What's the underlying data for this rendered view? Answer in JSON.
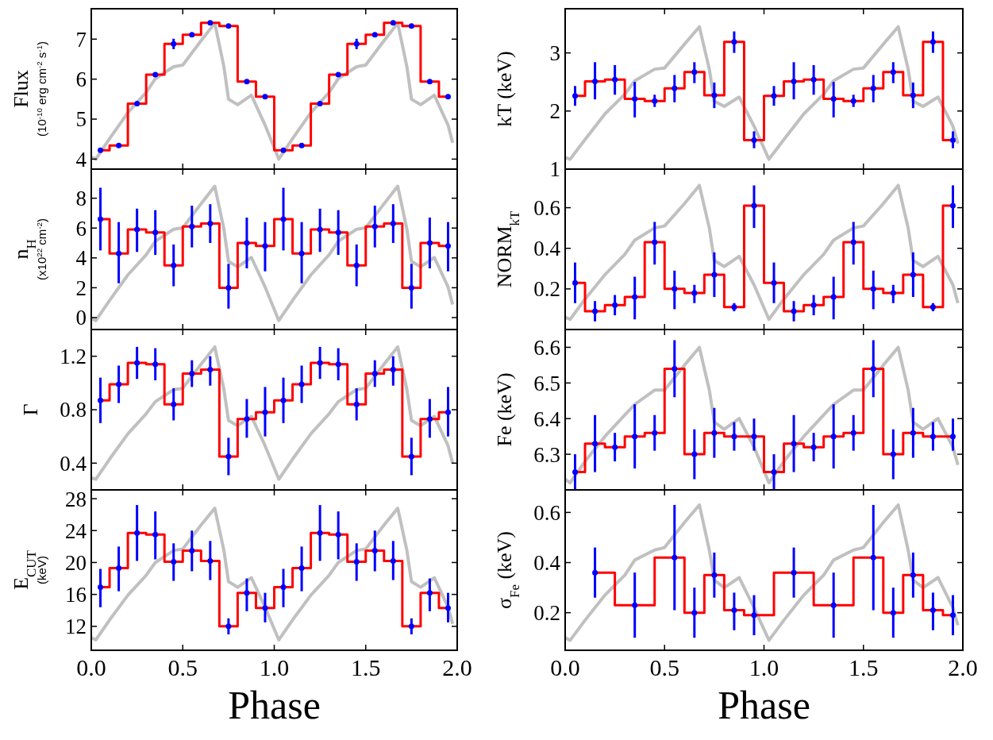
{
  "chart_data": [
    {
      "type": "line",
      "ylabel": "Flux\n(10$^{-10}$ erg cm$^{-2}$ s$^{-1}$)",
      "xlim": [
        0,
        2
      ],
      "xticks": [
        0,
        0.5,
        1,
        1.5,
        2
      ],
      "ylim": [
        3.75,
        7.76
      ],
      "yticks": [
        4,
        5,
        6,
        7
      ],
      "tick_labels": "y",
      "series": [
        {
          "color": "#c0c0c0",
          "x": [
            0,
            0.025,
            0.1,
            0.2,
            0.3,
            0.35,
            0.45,
            0.5,
            0.6,
            0.675,
            0.725,
            0.75,
            0.8,
            0.875,
            0.95,
            1.025,
            1.1,
            1.2,
            1.3,
            1.35,
            1.45,
            1.5,
            1.6,
            1.675,
            1.725,
            1.75,
            1.8,
            1.875,
            1.95,
            1.975
          ],
          "values": [
            4.05,
            4.0,
            4.51,
            5.16,
            5.67,
            6.01,
            6.31,
            6.35,
            6.96,
            7.4,
            6.31,
            5.5,
            5.36,
            5.6,
            4.85,
            4.0,
            4.51,
            5.16,
            5.67,
            6.01,
            6.31,
            6.35,
            6.96,
            7.4,
            6.31,
            5.5,
            5.36,
            5.6,
            4.85,
            4.41
          ]
        },
        {
          "type": "step",
          "color": "#ff0000",
          "x": [
            0.05,
            0.1,
            0.2,
            0.3,
            0.4,
            0.5,
            0.6,
            0.7,
            0.8,
            0.9,
            1.0,
            1.1,
            1.2,
            1.3,
            1.4,
            1.5,
            1.6,
            1.7,
            1.8,
            1.9,
            1.95
          ],
          "values": [
            4.22,
            4.34,
            5.39,
            6.11,
            6.88,
            7.11,
            7.41,
            7.33,
            5.94,
            5.56,
            4.22,
            4.34,
            5.39,
            6.11,
            6.88,
            7.11,
            7.41,
            7.33,
            5.94,
            5.56,
            5.56
          ]
        },
        {
          "type": "scatter",
          "color": "#0000ff",
          "marker": "circle",
          "x": [
            0.05,
            0.15,
            0.25,
            0.35,
            0.45,
            0.55,
            0.65,
            0.75,
            0.85,
            0.95,
            1.05,
            1.15,
            1.25,
            1.35,
            1.45,
            1.55,
            1.65,
            1.75,
            1.85,
            1.95
          ],
          "values": [
            4.22,
            4.34,
            5.39,
            6.11,
            6.88,
            7.11,
            7.41,
            7.33,
            5.94,
            5.56,
            4.22,
            4.34,
            5.39,
            6.11,
            6.88,
            7.11,
            7.41,
            7.33,
            5.94,
            5.56
          ],
          "errors": [
            0.05,
            0.05,
            0.05,
            0.05,
            0.13,
            0.05,
            0.05,
            0.05,
            0.05,
            0.05,
            0.05,
            0.05,
            0.05,
            0.05,
            0.13,
            0.05,
            0.05,
            0.05,
            0.05,
            0.05
          ]
        }
      ]
    },
    {
      "type": "line",
      "ylabel": "kT (keV)",
      "xlim": [
        0,
        2
      ],
      "xticks": [
        0,
        0.5,
        1,
        1.5,
        2
      ],
      "ylim": [
        1,
        3.76
      ],
      "yticks": [
        1,
        2,
        3
      ],
      "tick_labels": "y",
      "series": [
        {
          "color": "#c0c0c0",
          "x": [
            0,
            0.025,
            0.1,
            0.2,
            0.3,
            0.35,
            0.45,
            0.5,
            0.6,
            0.675,
            0.725,
            0.75,
            0.8,
            0.875,
            0.95,
            1.025,
            1.1,
            1.2,
            1.3,
            1.35,
            1.45,
            1.5,
            1.6,
            1.675,
            1.725,
            1.75,
            1.8,
            1.875,
            1.95,
            1.975
          ],
          "values": [
            1.2,
            1.17,
            1.51,
            1.95,
            2.29,
            2.52,
            2.72,
            2.74,
            3.15,
            3.45,
            2.72,
            2.17,
            2.08,
            2.24,
            1.74,
            1.17,
            1.51,
            1.95,
            2.29,
            2.52,
            2.72,
            2.74,
            3.15,
            3.45,
            2.72,
            2.17,
            2.08,
            2.24,
            1.74,
            1.44
          ]
        },
        {
          "type": "step",
          "color": "#ff0000",
          "x": [
            0.05,
            0.1,
            0.2,
            0.3,
            0.4,
            0.5,
            0.6,
            0.7,
            0.8,
            0.9,
            1.0,
            1.1,
            1.2,
            1.3,
            1.4,
            1.5,
            1.6,
            1.7,
            1.8,
            1.9,
            1.95
          ],
          "values": [
            2.26,
            2.51,
            2.54,
            2.21,
            2.17,
            2.39,
            2.67,
            2.27,
            3.19,
            1.5,
            2.26,
            2.51,
            2.54,
            2.21,
            2.17,
            2.39,
            2.67,
            2.27,
            3.19,
            1.5,
            1.5
          ]
        },
        {
          "type": "scatter",
          "color": "#0000ff",
          "marker": "circle",
          "x": [
            0.05,
            0.15,
            0.25,
            0.35,
            0.45,
            0.55,
            0.65,
            0.75,
            0.85,
            0.95,
            1.05,
            1.15,
            1.25,
            1.35,
            1.45,
            1.55,
            1.65,
            1.75,
            1.85,
            1.95
          ],
          "values": [
            2.26,
            2.51,
            2.54,
            2.21,
            2.17,
            2.39,
            2.67,
            2.27,
            3.19,
            1.5,
            2.26,
            2.51,
            2.54,
            2.21,
            2.17,
            2.39,
            2.67,
            2.27,
            3.19,
            1.5
          ],
          "errors": [
            [
              2.09,
              2.43
            ],
            [
              2.2,
              2.84
            ],
            [
              2.28,
              2.79
            ],
            [
              1.89,
              2.5
            ],
            [
              2.07,
              2.28
            ],
            [
              2.15,
              2.62
            ],
            [
              2.48,
              2.84
            ],
            [
              2.05,
              2.49
            ],
            [
              3.0,
              3.37
            ],
            [
              1.36,
              1.65
            ],
            [
              2.09,
              2.43
            ],
            [
              2.2,
              2.84
            ],
            [
              2.28,
              2.79
            ],
            [
              1.89,
              2.5
            ],
            [
              2.07,
              2.28
            ],
            [
              2.15,
              2.62
            ],
            [
              2.48,
              2.84
            ],
            [
              2.05,
              2.49
            ],
            [
              3.0,
              3.37
            ],
            [
              1.36,
              1.65
            ]
          ]
        }
      ]
    },
    {
      "type": "line",
      "ylabel": "n$_{H}$\n(x10$^{22}$ cm$^{-2}$)",
      "xlim": [
        0,
        2
      ],
      "xticks": [
        0,
        0.5,
        1,
        1.5,
        2
      ],
      "ylim": [
        -0.8,
        9.95
      ],
      "yticks": [
        0,
        2,
        4,
        6,
        8
      ],
      "tick_labels": "y",
      "series": [
        {
          "color": "#c0c0c0",
          "x": [
            0,
            0.025,
            0.1,
            0.2,
            0.3,
            0.35,
            0.45,
            0.5,
            0.6,
            0.675,
            0.725,
            0.75,
            0.8,
            0.875,
            0.95,
            1.025,
            1.1,
            1.2,
            1.3,
            1.35,
            1.45,
            1.5,
            1.6,
            1.675,
            1.725,
            1.75,
            1.8,
            1.875,
            1.95,
            1.975
          ],
          "values": [
            -0.07,
            -0.2,
            1.15,
            2.86,
            4.21,
            5.11,
            5.92,
            6.01,
            7.63,
            8.8,
            5.92,
            3.76,
            3.4,
            4.03,
            2.05,
            -0.2,
            1.15,
            2.86,
            4.21,
            5.11,
            5.92,
            6.01,
            7.63,
            8.8,
            5.92,
            3.76,
            3.4,
            4.03,
            2.05,
            0.88
          ]
        },
        {
          "type": "step",
          "color": "#ff0000",
          "x": [
            0.05,
            0.1,
            0.2,
            0.3,
            0.4,
            0.5,
            0.6,
            0.7,
            0.8,
            0.9,
            1.0,
            1.1,
            1.2,
            1.3,
            1.4,
            1.5,
            1.6,
            1.7,
            1.8,
            1.9,
            1.95
          ],
          "values": [
            6.6,
            4.3,
            5.9,
            5.7,
            3.5,
            6.1,
            6.3,
            2.0,
            5.0,
            4.8,
            6.6,
            4.3,
            5.9,
            5.7,
            3.5,
            6.1,
            6.3,
            2.0,
            5.0,
            4.8,
            4.8
          ]
        },
        {
          "type": "scatter",
          "color": "#0000ff",
          "marker": "circle",
          "x": [
            0.05,
            0.15,
            0.25,
            0.35,
            0.45,
            0.55,
            0.65,
            0.75,
            0.85,
            0.95,
            1.05,
            1.15,
            1.25,
            1.35,
            1.45,
            1.55,
            1.65,
            1.75,
            1.85,
            1.95
          ],
          "values": [
            6.6,
            4.3,
            5.9,
            5.7,
            3.5,
            6.1,
            6.3,
            2.0,
            5.0,
            4.8,
            6.6,
            4.3,
            5.9,
            5.7,
            3.5,
            6.1,
            6.3,
            2.0,
            5.0,
            4.8
          ],
          "errors": [
            [
              4.5,
              8.7
            ],
            [
              2.3,
              6.4
            ],
            [
              4.4,
              7.3
            ],
            [
              4.2,
              7.2
            ],
            [
              2.1,
              4.9
            ],
            [
              4.7,
              7.5
            ],
            [
              5.0,
              7.6
            ],
            [
              0.6,
              3.6
            ],
            [
              3.3,
              6.7
            ],
            [
              3.1,
              6.4
            ],
            [
              4.5,
              8.7
            ],
            [
              2.3,
              6.4
            ],
            [
              4.4,
              7.3
            ],
            [
              4.2,
              7.2
            ],
            [
              2.1,
              4.9
            ],
            [
              4.7,
              7.5
            ],
            [
              5.0,
              7.6
            ],
            [
              0.6,
              3.6
            ],
            [
              3.3,
              6.7
            ],
            [
              3.1,
              6.4
            ]
          ]
        }
      ]
    },
    {
      "type": "line",
      "ylabel": "NORM$_{kT}$",
      "xlim": [
        0,
        2
      ],
      "xticks": [
        0,
        0.5,
        1,
        1.5,
        2
      ],
      "ylim": [
        0,
        0.79
      ],
      "yticks": [
        0.2,
        0.4,
        0.6
      ],
      "tick_labels": "y",
      "series": [
        {
          "color": "#c0c0c0",
          "x": [
            0,
            0.025,
            0.1,
            0.2,
            0.3,
            0.35,
            0.45,
            0.5,
            0.6,
            0.675,
            0.725,
            0.75,
            0.8,
            0.875,
            0.95,
            1.025,
            1.1,
            1.2,
            1.3,
            1.35,
            1.45,
            1.5,
            1.6,
            1.675,
            1.725,
            1.75,
            1.8,
            1.875,
            1.95,
            1.975
          ],
          "values": [
            0.06,
            0.05,
            0.15,
            0.27,
            0.37,
            0.44,
            0.5,
            0.51,
            0.62,
            0.71,
            0.5,
            0.34,
            0.31,
            0.36,
            0.22,
            0.05,
            0.15,
            0.27,
            0.37,
            0.44,
            0.5,
            0.51,
            0.62,
            0.71,
            0.5,
            0.34,
            0.31,
            0.36,
            0.22,
            0.13
          ]
        },
        {
          "type": "step",
          "color": "#ff0000",
          "x": [
            0.05,
            0.1,
            0.2,
            0.3,
            0.4,
            0.5,
            0.6,
            0.7,
            0.8,
            0.9,
            1.0,
            1.1,
            1.2,
            1.3,
            1.4,
            1.5,
            1.6,
            1.7,
            1.8,
            1.9,
            1.95
          ],
          "values": [
            0.23,
            0.09,
            0.12,
            0.16,
            0.43,
            0.2,
            0.18,
            0.27,
            0.11,
            0.61,
            0.23,
            0.09,
            0.12,
            0.16,
            0.43,
            0.2,
            0.18,
            0.27,
            0.11,
            0.61,
            0.61
          ]
        },
        {
          "type": "scatter",
          "color": "#0000ff",
          "marker": "circle",
          "x": [
            0.05,
            0.15,
            0.25,
            0.35,
            0.45,
            0.55,
            0.65,
            0.75,
            0.85,
            0.95,
            1.05,
            1.15,
            1.25,
            1.35,
            1.45,
            1.55,
            1.65,
            1.75,
            1.85,
            1.95
          ],
          "values": [
            0.23,
            0.09,
            0.12,
            0.16,
            0.43,
            0.2,
            0.18,
            0.27,
            0.11,
            0.61,
            0.23,
            0.09,
            0.12,
            0.16,
            0.43,
            0.2,
            0.18,
            0.27,
            0.11,
            0.61
          ],
          "errors": [
            [
              0.13,
              0.33
            ],
            [
              0.04,
              0.14
            ],
            [
              0.07,
              0.17
            ],
            [
              0.05,
              0.26
            ],
            [
              0.32,
              0.53
            ],
            [
              0.1,
              0.29
            ],
            [
              0.13,
              0.22
            ],
            [
              0.16,
              0.38
            ],
            [
              0.09,
              0.13
            ],
            [
              0.5,
              0.71
            ],
            [
              0.13,
              0.33
            ],
            [
              0.04,
              0.14
            ],
            [
              0.07,
              0.17
            ],
            [
              0.05,
              0.26
            ],
            [
              0.32,
              0.53
            ],
            [
              0.1,
              0.29
            ],
            [
              0.13,
              0.22
            ],
            [
              0.16,
              0.38
            ],
            [
              0.09,
              0.13
            ],
            [
              0.5,
              0.71
            ]
          ]
        }
      ]
    },
    {
      "type": "line",
      "ylabel": "Γ",
      "xlim": [
        0,
        2
      ],
      "xticks": [
        0,
        0.5,
        1,
        1.5,
        2
      ],
      "ylim": [
        0.2,
        1.4
      ],
      "yticks": [
        0.4,
        0.8,
        1.2
      ],
      "tick_labels": "y",
      "series": [
        {
          "color": "#c0c0c0",
          "x": [
            0,
            0.025,
            0.1,
            0.2,
            0.3,
            0.35,
            0.45,
            0.5,
            0.6,
            0.675,
            0.725,
            0.75,
            0.8,
            0.875,
            0.95,
            1.025,
            1.1,
            1.2,
            1.3,
            1.35,
            1.45,
            1.5,
            1.6,
            1.675,
            1.725,
            1.75,
            1.8,
            1.875,
            1.95,
            1.975
          ],
          "values": [
            0.29,
            0.28,
            0.43,
            0.62,
            0.77,
            0.86,
            0.95,
            0.96,
            1.14,
            1.27,
            0.95,
            0.72,
            0.68,
            0.75,
            0.53,
            0.28,
            0.43,
            0.62,
            0.77,
            0.86,
            0.95,
            0.96,
            1.14,
            1.27,
            0.95,
            0.72,
            0.68,
            0.75,
            0.53,
            0.4
          ]
        },
        {
          "type": "step",
          "color": "#ff0000",
          "x": [
            0.05,
            0.1,
            0.2,
            0.3,
            0.4,
            0.5,
            0.6,
            0.7,
            0.8,
            0.9,
            1.0,
            1.1,
            1.2,
            1.3,
            1.4,
            1.5,
            1.6,
            1.7,
            1.8,
            1.9,
            1.95
          ],
          "values": [
            0.87,
            0.99,
            1.15,
            1.14,
            0.84,
            1.07,
            1.1,
            0.45,
            0.73,
            0.78,
            0.87,
            0.99,
            1.15,
            1.14,
            0.84,
            1.07,
            1.1,
            0.45,
            0.73,
            0.78,
            0.78
          ]
        },
        {
          "type": "scatter",
          "color": "#0000ff",
          "marker": "circle",
          "x": [
            0.05,
            0.15,
            0.25,
            0.35,
            0.45,
            0.55,
            0.65,
            0.75,
            0.85,
            0.95,
            1.05,
            1.15,
            1.25,
            1.35,
            1.45,
            1.55,
            1.65,
            1.75,
            1.85,
            1.95
          ],
          "values": [
            0.87,
            0.99,
            1.15,
            1.14,
            0.84,
            1.07,
            1.1,
            0.45,
            0.73,
            0.78,
            0.87,
            0.99,
            1.15,
            1.14,
            0.84,
            1.07,
            1.1,
            0.45,
            0.73,
            0.78
          ],
          "errors": [
            [
              0.7,
              1.04
            ],
            [
              0.85,
              1.13
            ],
            [
              1.03,
              1.27
            ],
            [
              1.02,
              1.26
            ],
            [
              0.72,
              0.96
            ],
            [
              0.97,
              1.17
            ],
            [
              0.98,
              1.2
            ],
            [
              0.31,
              0.59
            ],
            [
              0.59,
              0.88
            ],
            [
              0.6,
              0.97
            ],
            [
              0.7,
              1.04
            ],
            [
              0.85,
              1.13
            ],
            [
              1.03,
              1.27
            ],
            [
              1.02,
              1.26
            ],
            [
              0.72,
              0.96
            ],
            [
              0.97,
              1.17
            ],
            [
              0.98,
              1.2
            ],
            [
              0.31,
              0.59
            ],
            [
              0.59,
              0.88
            ],
            [
              0.6,
              0.97
            ]
          ]
        }
      ]
    },
    {
      "type": "line",
      "ylabel": "Fe (keV)",
      "xlim": [
        0,
        2
      ],
      "xticks": [
        0,
        0.5,
        1,
        1.5,
        2
      ],
      "ylim": [
        6.2,
        6.65
      ],
      "yticks": [
        6.3,
        6.4,
        6.5,
        6.6
      ],
      "tick_labels": "y",
      "series": [
        {
          "color": "#c0c0c0",
          "x": [
            0,
            0.025,
            0.1,
            0.2,
            0.3,
            0.35,
            0.45,
            0.5,
            0.6,
            0.675,
            0.725,
            0.75,
            0.8,
            0.875,
            0.95,
            1.025,
            1.1,
            1.2,
            1.3,
            1.35,
            1.45,
            1.5,
            1.6,
            1.675,
            1.725,
            1.75,
            1.8,
            1.875,
            1.95,
            1.975
          ],
          "values": [
            6.23,
            6.22,
            6.28,
            6.35,
            6.41,
            6.44,
            6.48,
            6.48,
            6.55,
            6.6,
            6.48,
            6.39,
            6.37,
            6.4,
            6.32,
            6.22,
            6.28,
            6.35,
            6.41,
            6.44,
            6.48,
            6.48,
            6.55,
            6.6,
            6.48,
            6.39,
            6.37,
            6.4,
            6.32,
            6.27
          ]
        },
        {
          "type": "step",
          "color": "#ff0000",
          "x": [
            0.05,
            0.1,
            0.2,
            0.3,
            0.4,
            0.5,
            0.6,
            0.7,
            0.8,
            0.9,
            1.0,
            1.1,
            1.2,
            1.3,
            1.4,
            1.5,
            1.6,
            1.7,
            1.8,
            1.9,
            1.95
          ],
          "values": [
            6.25,
            6.33,
            6.32,
            6.35,
            6.36,
            6.54,
            6.3,
            6.36,
            6.35,
            6.35,
            6.25,
            6.33,
            6.32,
            6.35,
            6.36,
            6.54,
            6.3,
            6.36,
            6.35,
            6.35,
            6.35
          ]
        },
        {
          "type": "scatter",
          "color": "#0000ff",
          "marker": "circle",
          "x": [
            0.05,
            0.15,
            0.25,
            0.35,
            0.45,
            0.55,
            0.65,
            0.75,
            0.85,
            0.95,
            1.05,
            1.15,
            1.25,
            1.35,
            1.45,
            1.55,
            1.65,
            1.75,
            1.85,
            1.95
          ],
          "values": [
            6.25,
            6.33,
            6.32,
            6.35,
            6.36,
            6.54,
            6.3,
            6.36,
            6.35,
            6.35,
            6.25,
            6.33,
            6.32,
            6.35,
            6.36,
            6.54,
            6.3,
            6.36,
            6.35,
            6.35
          ],
          "errors": [
            [
              6.2,
              6.3
            ],
            [
              6.25,
              6.41
            ],
            [
              6.28,
              6.36
            ],
            [
              6.26,
              6.44
            ],
            [
              6.31,
              6.41
            ],
            [
              6.46,
              6.62
            ],
            [
              6.23,
              6.37
            ],
            [
              6.29,
              6.43
            ],
            [
              6.31,
              6.39
            ],
            [
              6.31,
              6.4
            ],
            [
              6.2,
              6.3
            ],
            [
              6.25,
              6.41
            ],
            [
              6.28,
              6.36
            ],
            [
              6.26,
              6.44
            ],
            [
              6.31,
              6.41
            ],
            [
              6.46,
              6.62
            ],
            [
              6.23,
              6.37
            ],
            [
              6.29,
              6.43
            ],
            [
              6.31,
              6.39
            ],
            [
              6.31,
              6.4
            ]
          ]
        }
      ]
    },
    {
      "type": "line",
      "ylabel": "E$_{CUT}$\n(keV)",
      "xlabel": "Phase",
      "xlim": [
        0,
        2
      ],
      "xticks": [
        {
          "value": 0,
          "label": "0.0"
        },
        {
          "value": 0.5,
          "label": "0.5"
        },
        {
          "value": 1,
          "label": "1.0"
        },
        {
          "value": 1.5,
          "label": "1.5"
        },
        {
          "value": 2,
          "label": "2.0"
        }
      ],
      "ylim": [
        9,
        29.1
      ],
      "yticks": [
        12,
        16,
        20,
        24,
        28
      ],
      "series": [
        {
          "color": "#c0c0c0",
          "x": [
            0,
            0.025,
            0.1,
            0.2,
            0.3,
            0.35,
            0.45,
            0.5,
            0.6,
            0.675,
            0.725,
            0.75,
            0.8,
            0.875,
            0.95,
            1.025,
            1.1,
            1.2,
            1.3,
            1.35,
            1.45,
            1.5,
            1.6,
            1.675,
            1.725,
            1.75,
            1.8,
            1.875,
            1.95,
            1.975
          ],
          "values": [
            10.6,
            10.3,
            12.8,
            15.9,
            18.4,
            20.0,
            21.5,
            21.7,
            24.7,
            26.8,
            21.5,
            17.6,
            16.9,
            18.1,
            14.4,
            10.3,
            12.8,
            15.9,
            18.4,
            20.0,
            21.5,
            21.7,
            24.7,
            26.8,
            21.5,
            17.6,
            16.9,
            18.1,
            14.4,
            12.3
          ]
        },
        {
          "type": "step",
          "color": "#ff0000",
          "x": [
            0.05,
            0.1,
            0.2,
            0.3,
            0.4,
            0.5,
            0.6,
            0.7,
            0.8,
            0.9,
            1.0,
            1.1,
            1.2,
            1.3,
            1.4,
            1.5,
            1.6,
            1.7,
            1.8,
            1.9,
            1.95
          ],
          "values": [
            16.9,
            19.3,
            23.7,
            23.5,
            20.1,
            21.5,
            20.2,
            12.0,
            16.2,
            14.3,
            16.9,
            19.3,
            23.7,
            23.5,
            20.1,
            21.5,
            20.2,
            12.0,
            16.2,
            14.3,
            14.3
          ]
        },
        {
          "type": "scatter",
          "color": "#0000ff",
          "marker": "circle",
          "x": [
            0.05,
            0.15,
            0.25,
            0.35,
            0.45,
            0.55,
            0.65,
            0.75,
            0.85,
            0.95,
            1.05,
            1.15,
            1.25,
            1.35,
            1.45,
            1.55,
            1.65,
            1.75,
            1.85,
            1.95
          ],
          "values": [
            16.9,
            19.3,
            23.7,
            23.5,
            20.1,
            21.5,
            20.2,
            12.0,
            16.2,
            14.3,
            16.9,
            19.3,
            23.7,
            23.5,
            20.1,
            21.5,
            20.2,
            12.0,
            16.2,
            14.3
          ],
          "errors": [
            [
              14.4,
              19.2
            ],
            [
              16.4,
              22.0
            ],
            [
              20.2,
              27.2
            ],
            [
              20.4,
              26.4
            ],
            [
              17.7,
              22.4
            ],
            [
              18.9,
              24.0
            ],
            [
              17.8,
              22.7
            ],
            [
              11.0,
              13.0
            ],
            [
              13.9,
              18.0
            ],
            [
              12.5,
              16.2
            ],
            [
              14.4,
              19.2
            ],
            [
              16.4,
              22.0
            ],
            [
              20.2,
              27.2
            ],
            [
              20.4,
              26.4
            ],
            [
              17.7,
              22.4
            ],
            [
              18.9,
              24.0
            ],
            [
              17.8,
              22.7
            ],
            [
              11.0,
              13.0
            ],
            [
              13.9,
              18.0
            ],
            [
              12.5,
              16.2
            ]
          ]
        }
      ]
    },
    {
      "type": "line",
      "ylabel": "σ$_{Fe}$ (keV)",
      "xlabel": "Phase",
      "xlim": [
        0,
        2
      ],
      "xticks": [
        {
          "value": 0,
          "label": "0.0"
        },
        {
          "value": 0.5,
          "label": "0.5"
        },
        {
          "value": 1,
          "label": "1.0"
        },
        {
          "value": 1.5,
          "label": "1.5"
        },
        {
          "value": 2,
          "label": "2.0"
        }
      ],
      "ylim": [
        0.05,
        0.69
      ],
      "yticks": [
        0.2,
        0.4,
        0.6
      ],
      "series": [
        {
          "color": "#c0c0c0",
          "x": [
            0,
            0.025,
            0.1,
            0.2,
            0.3,
            0.35,
            0.45,
            0.5,
            0.6,
            0.675,
            0.725,
            0.75,
            0.8,
            0.875,
            0.95,
            1.025,
            1.1,
            1.2,
            1.3,
            1.35,
            1.45,
            1.5,
            1.6,
            1.675,
            1.725,
            1.75,
            1.8,
            1.875,
            1.95,
            1.975
          ],
          "values": [
            0.1,
            0.09,
            0.17,
            0.27,
            0.35,
            0.41,
            0.45,
            0.46,
            0.56,
            0.63,
            0.45,
            0.33,
            0.3,
            0.34,
            0.22,
            0.09,
            0.17,
            0.27,
            0.35,
            0.41,
            0.45,
            0.46,
            0.56,
            0.63,
            0.45,
            0.33,
            0.3,
            0.34,
            0.22,
            0.15
          ]
        },
        {
          "type": "step",
          "color": "#ff0000",
          "x": [
            0.15,
            0.25,
            0.45,
            0.6,
            0.7,
            0.8,
            0.9,
            1.05,
            1.25,
            1.45,
            1.6,
            1.7,
            1.8,
            1.9,
            1.95
          ],
          "values": [
            0.36,
            0.23,
            0.42,
            0.2,
            0.35,
            0.21,
            0.19,
            0.36,
            0.23,
            0.42,
            0.2,
            0.35,
            0.21,
            0.19,
            0.19
          ]
        },
        {
          "type": "scatter",
          "color": "#0000ff",
          "marker": "circle",
          "x": [
            0.15,
            0.35,
            0.55,
            0.65,
            0.75,
            0.85,
            0.95,
            1.15,
            1.35,
            1.55,
            1.65,
            1.75,
            1.85,
            1.95
          ],
          "values": [
            0.36,
            0.23,
            0.42,
            0.2,
            0.35,
            0.21,
            0.19,
            0.36,
            0.23,
            0.42,
            0.2,
            0.35,
            0.21,
            0.19
          ],
          "errors": [
            [
              0.26,
              0.46
            ],
            [
              0.1,
              0.36
            ],
            [
              0.21,
              0.63
            ],
            [
              0.1,
              0.3
            ],
            [
              0.26,
              0.44
            ],
            [
              0.13,
              0.28
            ],
            [
              0.11,
              0.27
            ],
            [
              0.26,
              0.46
            ],
            [
              0.1,
              0.36
            ],
            [
              0.21,
              0.63
            ],
            [
              0.1,
              0.3
            ],
            [
              0.26,
              0.44
            ],
            [
              0.13,
              0.28
            ],
            [
              0.11,
              0.27
            ]
          ]
        }
      ]
    }
  ]
}
